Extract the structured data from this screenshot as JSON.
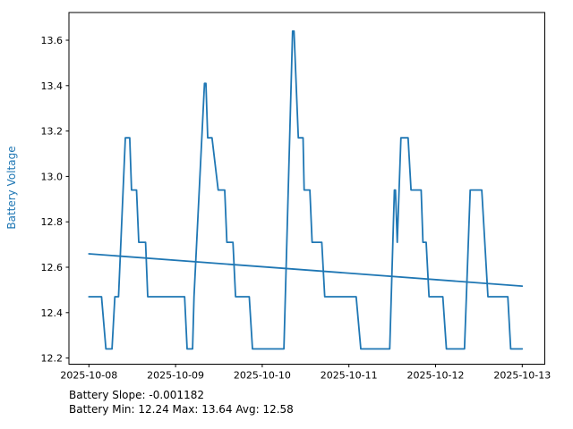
{
  "figure": {
    "ylabel": "Battery Voltage",
    "annotation_line1": "Battery Slope: -0.001182",
    "annotation_line2": "Battery Min: 12.24 Max: 13.64 Avg: 12.58"
  },
  "chart_data": {
    "type": "line",
    "title": "",
    "xlabel": "",
    "ylabel": "Battery Voltage",
    "x_unit": "hours since 2025-10-08 00:00",
    "points_format": "[hours, volts] polyline breakpoints read from plot",
    "x_tick_hours": [
      0,
      24,
      48,
      72,
      96,
      120
    ],
    "x_tick_labels": [
      "2025-10-08",
      "2025-10-09",
      "2025-10-10",
      "2025-10-11",
      "2025-10-12",
      "2025-10-13"
    ],
    "y_ticks": [
      12.2,
      12.4,
      12.6,
      12.8,
      13.0,
      13.2,
      13.4,
      13.6
    ],
    "ylim": [
      12.173,
      13.722
    ],
    "xlim_hours": [
      -6,
      126
    ],
    "grid": false,
    "legend": "none",
    "line_color": "#1f77b4",
    "quantized_levels": [
      12.24,
      12.47,
      12.71,
      12.94,
      13.17,
      13.41,
      13.64
    ],
    "stats": {
      "slope": -0.001182,
      "min": 12.24,
      "max": 13.64,
      "avg": 12.58
    },
    "series": [
      {
        "name": "battery_voltage",
        "color": "#1f77b4",
        "points": [
          [
            0.0,
            12.47
          ],
          [
            3.5,
            12.47
          ],
          [
            4.7,
            12.24
          ],
          [
            6.4,
            12.24
          ],
          [
            7.2,
            12.47
          ],
          [
            8.2,
            12.47
          ],
          [
            10.1,
            13.17
          ],
          [
            11.3,
            13.17
          ],
          [
            11.8,
            12.94
          ],
          [
            13.2,
            12.94
          ],
          [
            13.8,
            12.71
          ],
          [
            15.7,
            12.71
          ],
          [
            16.3,
            12.47
          ],
          [
            26.5,
            12.47
          ],
          [
            27.2,
            12.24
          ],
          [
            28.7,
            12.24
          ],
          [
            29.1,
            12.47
          ],
          [
            32.0,
            13.41
          ],
          [
            32.4,
            13.41
          ],
          [
            32.9,
            13.17
          ],
          [
            34.1,
            13.17
          ],
          [
            35.8,
            12.94
          ],
          [
            37.6,
            12.94
          ],
          [
            38.2,
            12.71
          ],
          [
            39.9,
            12.71
          ],
          [
            40.6,
            12.47
          ],
          [
            44.4,
            12.47
          ],
          [
            45.3,
            12.24
          ],
          [
            54.0,
            12.24
          ],
          [
            56.4,
            13.64
          ],
          [
            56.8,
            13.64
          ],
          [
            58.0,
            13.17
          ],
          [
            59.3,
            13.17
          ],
          [
            59.6,
            12.94
          ],
          [
            61.2,
            12.94
          ],
          [
            61.8,
            12.71
          ],
          [
            64.5,
            12.71
          ],
          [
            65.3,
            12.47
          ],
          [
            74.0,
            12.47
          ],
          [
            75.3,
            12.24
          ],
          [
            83.3,
            12.24
          ],
          [
            84.6,
            12.94
          ],
          [
            84.9,
            12.94
          ],
          [
            85.4,
            12.71
          ],
          [
            86.4,
            13.17
          ],
          [
            88.4,
            13.17
          ],
          [
            89.2,
            12.94
          ],
          [
            92.0,
            12.94
          ],
          [
            92.5,
            12.71
          ],
          [
            93.4,
            12.71
          ],
          [
            94.2,
            12.47
          ],
          [
            98.0,
            12.47
          ],
          [
            99.0,
            12.24
          ],
          [
            104.0,
            12.24
          ],
          [
            105.6,
            12.94
          ],
          [
            108.8,
            12.94
          ],
          [
            110.5,
            12.47
          ],
          [
            116.0,
            12.47
          ],
          [
            116.8,
            12.24
          ],
          [
            120.0,
            12.24
          ]
        ]
      },
      {
        "name": "battery_trend",
        "color": "#1f77b4",
        "points": [
          [
            0.0,
            12.659
          ],
          [
            120.0,
            12.517
          ]
        ]
      }
    ]
  }
}
